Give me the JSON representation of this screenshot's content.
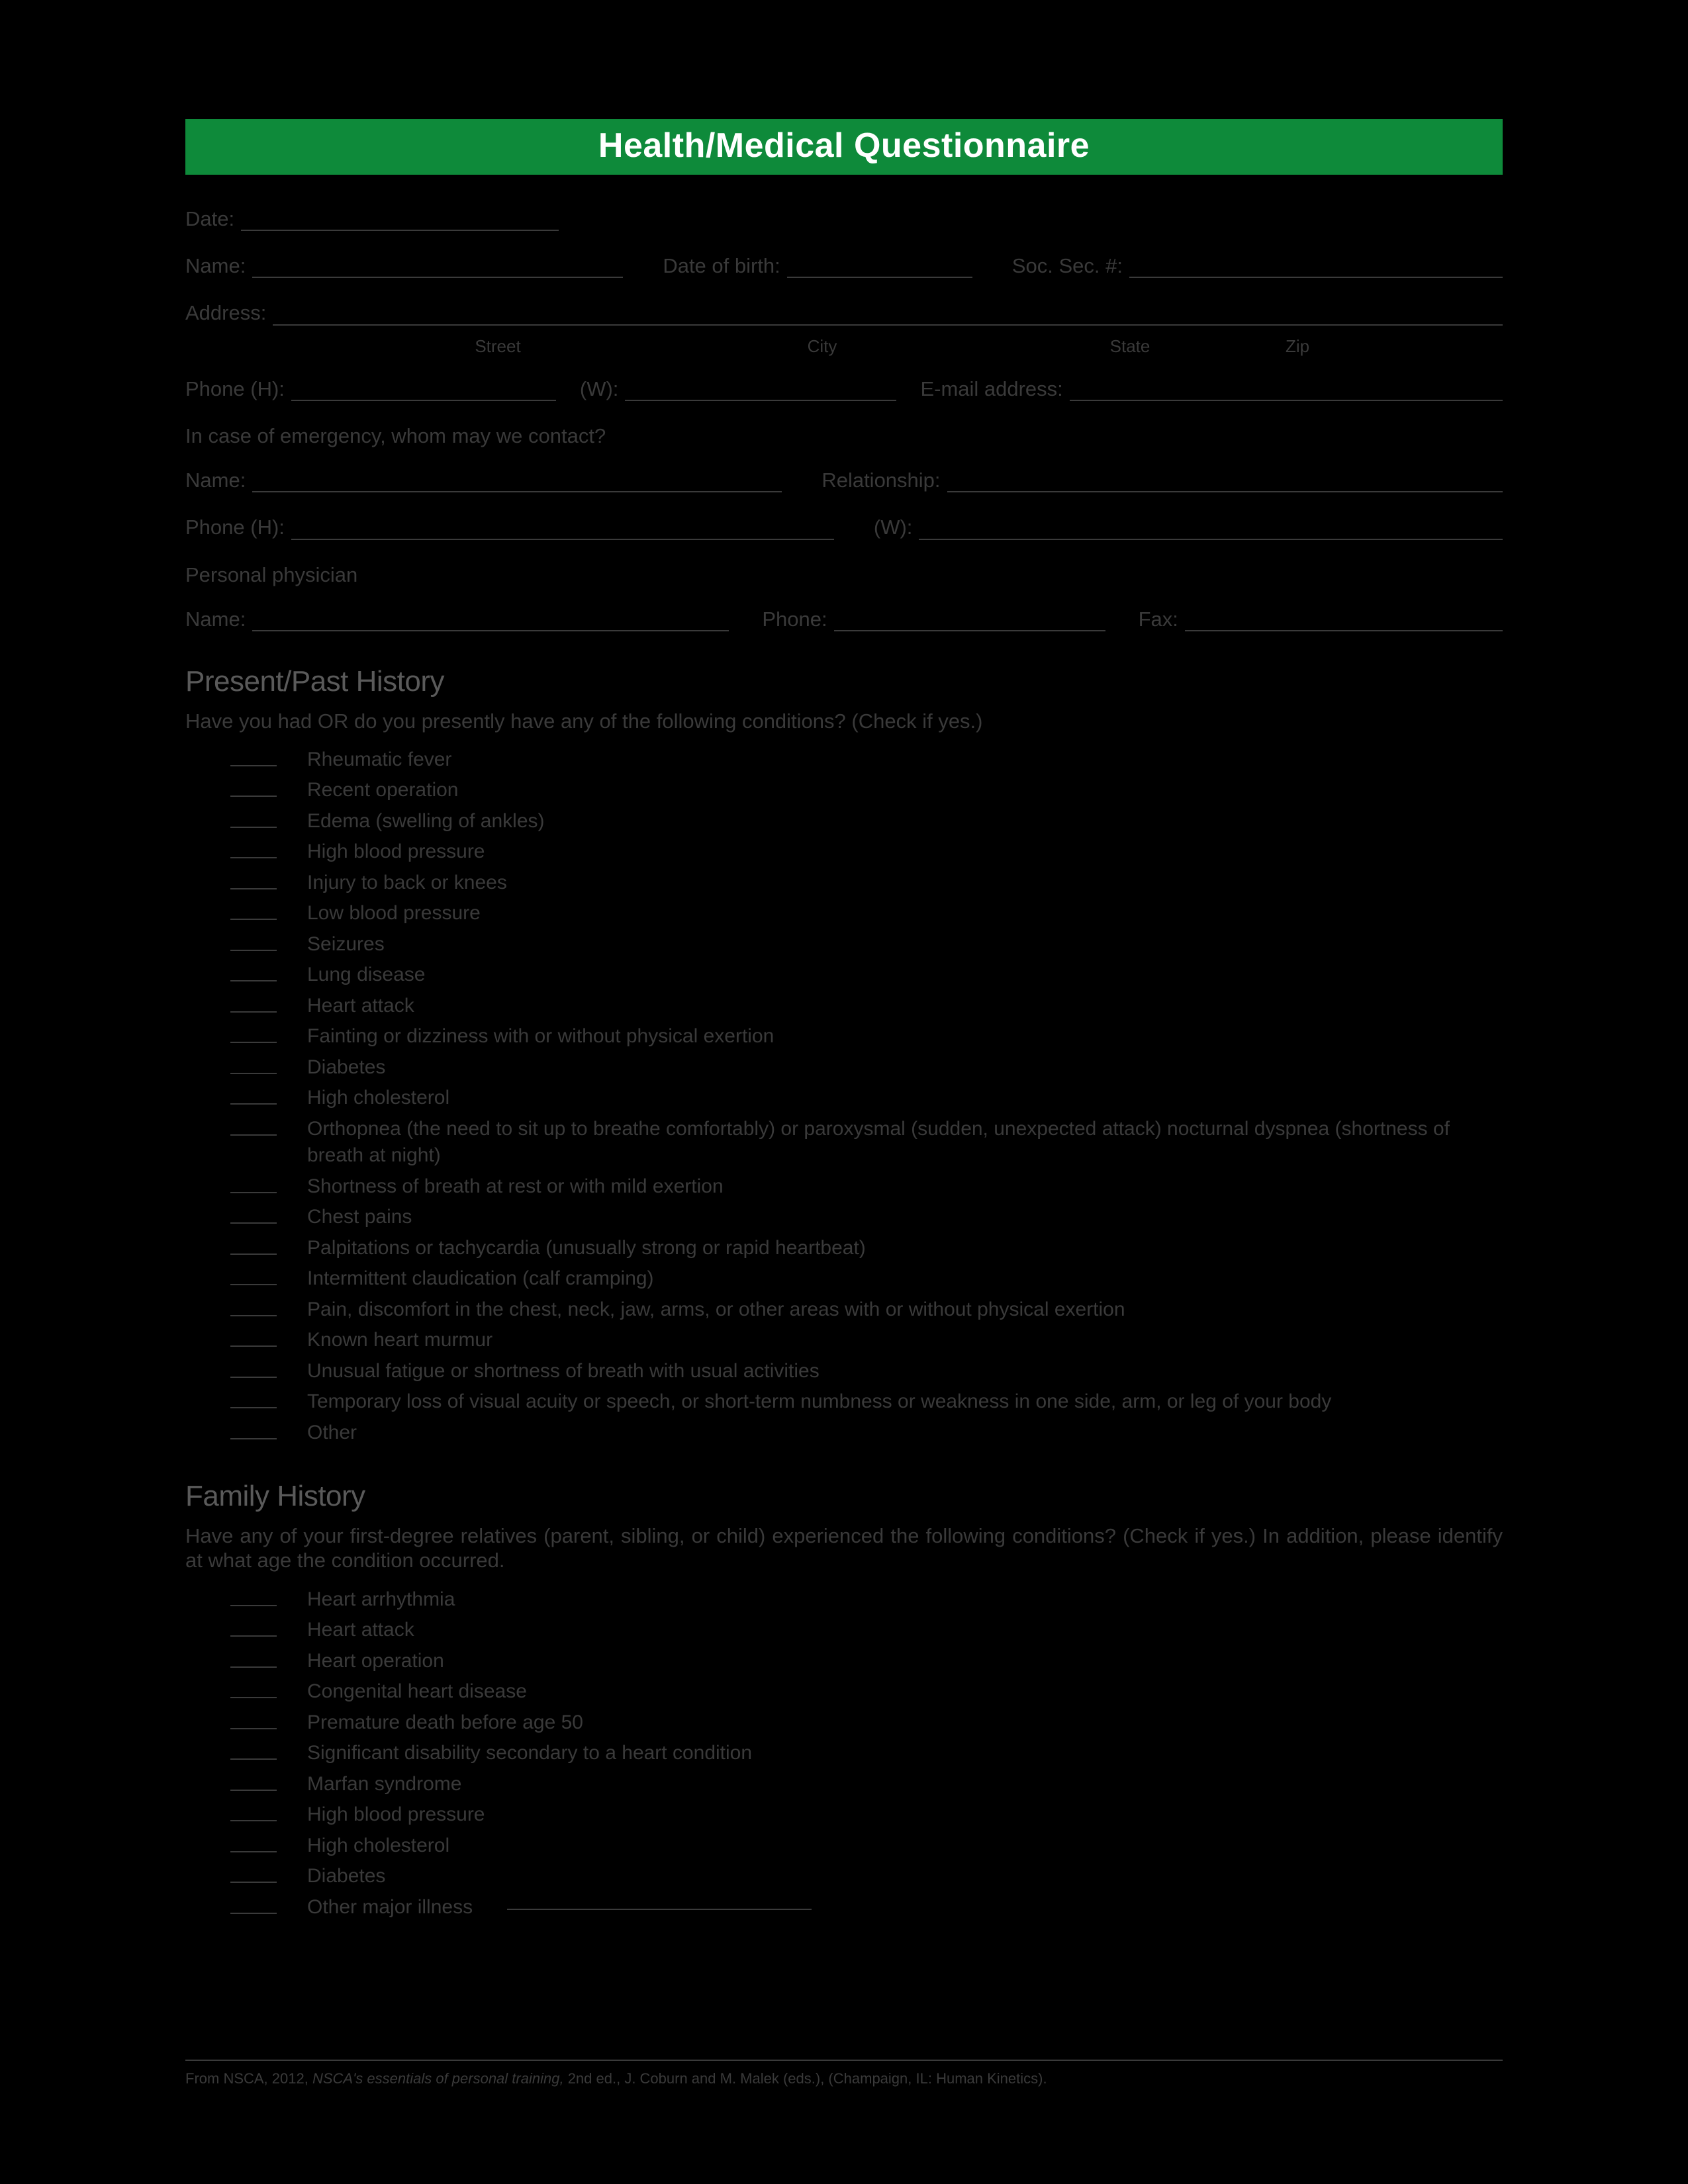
{
  "colors": {
    "page_background": "#000000",
    "banner_background": "#0e8a3a",
    "banner_text": "#ffffff",
    "body_text": "#3a3a3a",
    "section_header_text": "#5a5a5a",
    "rule_color": "#3a3a3a"
  },
  "typography": {
    "banner_fontsize": 52,
    "body_fontsize": 31,
    "section_header_fontsize": 44,
    "sublabel_fontsize": 26,
    "footer_fontsize": 22
  },
  "banner": {
    "title": "Health/Medical Questionnaire"
  },
  "fields": {
    "date": "Date:",
    "name": "Name:",
    "dob": "Date of birth:",
    "ssn": "Soc. Sec. #:",
    "address": "Address:",
    "address_sub": {
      "street": "Street",
      "city": "City",
      "state": "State",
      "zip": "Zip"
    },
    "phone_h": "Phone (H):",
    "phone_w": "(W):",
    "email": "E-mail address:",
    "emergency_prompt": "In case of emergency, whom may we contact?",
    "e_name": "Name:",
    "e_relationship": "Relationship:",
    "e_phone_h": "Phone (H):",
    "e_phone_w": "(W):",
    "physician_prompt": "Personal physician",
    "p_name": "Name:",
    "p_phone": "Phone:",
    "p_fax": "Fax:"
  },
  "history": {
    "header": "Present/Past History",
    "prompt": "Have you had OR do you presently have any of the following conditions? (Check if yes.)",
    "items": [
      "Rheumatic fever",
      "Recent operation",
      "Edema (swelling of ankles)",
      "High blood pressure",
      "Injury to back or knees",
      "Low blood pressure",
      "Seizures",
      "Lung disease",
      "Heart attack",
      "Fainting or dizziness with or without physical exertion",
      "Diabetes",
      "High cholesterol",
      "Orthopnea (the need to sit up to breathe comfortably) or paroxysmal (sudden, unexpected attack) nocturnal dyspnea (shortness of breath at night)",
      "Shortness of breath at rest or with mild exertion",
      "Chest pains",
      "Palpitations or tachycardia (unusually strong or rapid heartbeat)",
      "Intermittent claudication (calf cramping)",
      "Pain, discomfort in the chest, neck, jaw, arms, or other areas with or without physical exertion",
      "Known heart murmur",
      "Unusual fatigue or shortness of breath with usual activities",
      "Temporary loss of visual acuity or speech, or short-term numbness or weakness in one side, arm, or leg of your body",
      "Other"
    ]
  },
  "family": {
    "header": "Family History",
    "prompt": "Have any of your first-degree relatives (parent, sibling, or child) experienced the following conditions? (Check if yes.) In addition, please identify at what age the condition occurred.",
    "items": [
      "Heart arrhythmia",
      "Heart attack",
      "Heart operation",
      "Congenital heart disease",
      "Premature death before age 50",
      "Significant disability secondary to a heart condition",
      "Marfan syndrome",
      "High blood pressure",
      "High cholesterol",
      "Diabetes",
      "Other major illness"
    ],
    "last_has_blank": true
  },
  "footer": {
    "pre": "From NSCA, 2012, ",
    "ital": "NSCA's essentials of personal training, ",
    "post": "2nd ed., J. Coburn and M. Malek (eds.), (Champaign, IL: Human Kinetics)."
  }
}
